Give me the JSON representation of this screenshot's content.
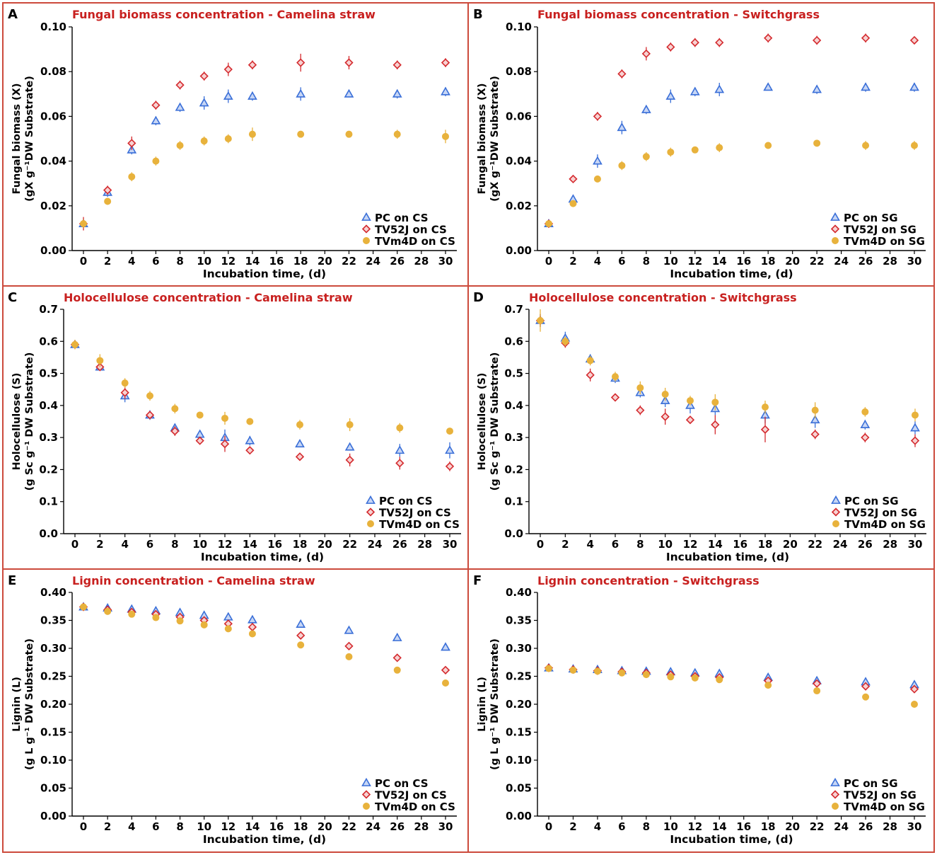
{
  "colors": {
    "pc": "#3a6fd8",
    "tv52j": "#d42a2e",
    "tvm4d": "#e8b23c",
    "title": "#c8201f",
    "frame": "#cc4a3c"
  },
  "chart_data": [
    {
      "id": "A",
      "letter": "A",
      "type": "scatter",
      "title": "Fungal biomass concentration - Camelina straw",
      "ylabel_line1": "Fungal biomass (X)",
      "ylabel_line2": "(gX g⁻¹DW Substrate)",
      "xlabel": "Incubation time, (d)",
      "xlim": [
        0,
        30
      ],
      "xticks": [
        0,
        2,
        4,
        6,
        8,
        10,
        12,
        14,
        16,
        18,
        20,
        22,
        24,
        26,
        28,
        30
      ],
      "ylim": [
        0,
        0.1
      ],
      "yticks": [
        "0.00",
        "0.02",
        "0.04",
        "0.06",
        "0.08",
        "0.10"
      ],
      "x": [
        0,
        2,
        4,
        6,
        8,
        10,
        12,
        14,
        18,
        22,
        26,
        30
      ],
      "series": [
        {
          "name": "PC on CS",
          "marker": "triangle",
          "values": [
            0.012,
            0.026,
            0.045,
            0.058,
            0.064,
            0.066,
            0.069,
            0.069,
            0.07,
            0.07,
            0.07,
            0.071
          ],
          "errors": [
            0.002,
            0.002,
            0.002,
            0.002,
            0.002,
            0.003,
            0.003,
            0.002,
            0.003,
            0.001,
            0.002,
            0.002
          ]
        },
        {
          "name": "TV52J on CS",
          "marker": "diamond",
          "values": [
            0.012,
            0.027,
            0.048,
            0.065,
            0.074,
            0.078,
            0.081,
            0.083,
            0.084,
            0.084,
            0.083,
            0.084
          ],
          "errors": [
            0.003,
            0.002,
            0.003,
            0.002,
            0.002,
            0.002,
            0.003,
            0.002,
            0.004,
            0.003,
            0.002,
            0.002
          ]
        },
        {
          "name": "TVm4D on CS",
          "marker": "circle",
          "values": [
            0.012,
            0.022,
            0.033,
            0.04,
            0.047,
            0.049,
            0.05,
            0.052,
            0.052,
            0.052,
            0.052,
            0.051
          ],
          "errors": [
            0.002,
            0.001,
            0.002,
            0.002,
            0.002,
            0.002,
            0.002,
            0.003,
            0.001,
            0.001,
            0.002,
            0.003
          ]
        }
      ]
    },
    {
      "id": "B",
      "letter": "B",
      "type": "scatter",
      "title": "Fungal biomass concentration - Switchgrass",
      "ylabel_line1": "Fungal biomass (X)",
      "ylabel_line2": "(gX g⁻¹DW Substrate)",
      "xlabel": "Incubation time, (d)",
      "xlim": [
        0,
        30
      ],
      "xticks": [
        0,
        2,
        4,
        6,
        8,
        10,
        12,
        14,
        16,
        18,
        20,
        22,
        24,
        26,
        28,
        30
      ],
      "ylim": [
        0,
        0.1
      ],
      "yticks": [
        "0.00",
        "0.02",
        "0.04",
        "0.06",
        "0.08",
        "0.10"
      ],
      "x": [
        0,
        2,
        4,
        6,
        8,
        10,
        12,
        14,
        18,
        22,
        26,
        30
      ],
      "series": [
        {
          "name": "PC on SG",
          "marker": "triangle",
          "values": [
            0.012,
            0.023,
            0.04,
            0.055,
            0.063,
            0.069,
            0.071,
            0.072,
            0.073,
            0.072,
            0.073,
            0.073
          ],
          "errors": [
            0.001,
            0.001,
            0.003,
            0.003,
            0.002,
            0.003,
            0.002,
            0.003,
            0.001,
            0.002,
            0.002,
            0.002
          ]
        },
        {
          "name": "TV52J on SG",
          "marker": "diamond",
          "values": [
            0.012,
            0.032,
            0.06,
            0.079,
            0.088,
            0.091,
            0.093,
            0.093,
            0.095,
            0.094,
            0.095,
            0.094
          ],
          "errors": [
            0.001,
            0.001,
            0.002,
            0.002,
            0.003,
            0.002,
            0.002,
            0.002,
            0.002,
            0.002,
            0.002,
            0.001
          ]
        },
        {
          "name": "TVm4D on SG",
          "marker": "circle",
          "values": [
            0.012,
            0.021,
            0.032,
            0.038,
            0.042,
            0.044,
            0.045,
            0.046,
            0.047,
            0.048,
            0.047,
            0.047
          ],
          "errors": [
            0.001,
            0.001,
            0.001,
            0.002,
            0.002,
            0.002,
            0.001,
            0.002,
            0.001,
            0.001,
            0.002,
            0.002
          ]
        }
      ]
    },
    {
      "id": "C",
      "letter": "C",
      "type": "scatter",
      "title": "Holocellulose concentration - Camelina straw",
      "ylabel_line1": "Holocellulose (S)",
      "ylabel_line2": "(g Sc g⁻¹ DW Substrate)",
      "xlabel": "Incubation time, (d)",
      "xlim": [
        0,
        30
      ],
      "xticks": [
        0,
        2,
        4,
        6,
        8,
        10,
        12,
        14,
        16,
        18,
        20,
        22,
        24,
        26,
        28,
        30
      ],
      "ylim": [
        0,
        0.7
      ],
      "yticks": [
        "0.0",
        "0.1",
        "0.2",
        "0.3",
        "0.4",
        "0.5",
        "0.6",
        "0.7"
      ],
      "x": [
        0,
        2,
        4,
        6,
        8,
        10,
        12,
        14,
        18,
        22,
        26,
        30
      ],
      "series": [
        {
          "name": "PC on CS",
          "marker": "triangle",
          "values": [
            0.59,
            0.52,
            0.43,
            0.37,
            0.33,
            0.31,
            0.3,
            0.29,
            0.28,
            0.27,
            0.26,
            0.26
          ],
          "errors": [
            0.01,
            0.01,
            0.02,
            0.015,
            0.01,
            0.01,
            0.025,
            0.015,
            0.01,
            0.01,
            0.02,
            0.025
          ]
        },
        {
          "name": "TV52J on CS",
          "marker": "diamond",
          "values": [
            0.59,
            0.52,
            0.44,
            0.37,
            0.32,
            0.29,
            0.28,
            0.26,
            0.24,
            0.23,
            0.22,
            0.21
          ],
          "errors": [
            0.01,
            0.01,
            0.02,
            0.01,
            0.015,
            0.01,
            0.025,
            0.01,
            0.01,
            0.02,
            0.02,
            0.015
          ]
        },
        {
          "name": "TVm4D on CS",
          "marker": "circle",
          "values": [
            0.59,
            0.54,
            0.47,
            0.43,
            0.39,
            0.37,
            0.36,
            0.35,
            0.34,
            0.34,
            0.33,
            0.32
          ],
          "errors": [
            0.015,
            0.02,
            0.015,
            0.015,
            0.015,
            0.01,
            0.02,
            0.01,
            0.015,
            0.02,
            0.015,
            0.01
          ]
        }
      ]
    },
    {
      "id": "D",
      "letter": "D",
      "type": "scatter",
      "title": "Holocellulose concentration - Switchgrass",
      "ylabel_line1": "Holocellulose (S)",
      "ylabel_line2": "(g Sc g⁻¹ DW Substrate)",
      "xlabel": "Incubation time, (d)",
      "xlim": [
        0,
        30
      ],
      "xticks": [
        0,
        2,
        4,
        6,
        8,
        10,
        12,
        14,
        16,
        18,
        20,
        22,
        24,
        26,
        28,
        30
      ],
      "ylim": [
        0,
        0.7
      ],
      "yticks": [
        "0.0",
        "0.1",
        "0.2",
        "0.3",
        "0.4",
        "0.5",
        "0.6",
        "0.7"
      ],
      "x": [
        0,
        2,
        4,
        6,
        8,
        10,
        12,
        14,
        18,
        22,
        26,
        30
      ],
      "series": [
        {
          "name": "PC on SG",
          "marker": "triangle",
          "values": [
            0.665,
            0.61,
            0.545,
            0.485,
            0.44,
            0.415,
            0.4,
            0.39,
            0.37,
            0.355,
            0.34,
            0.33
          ],
          "errors": [
            0.02,
            0.02,
            0.015,
            0.015,
            0.015,
            0.02,
            0.025,
            0.02,
            0.025,
            0.025,
            0.015,
            0.02
          ]
        },
        {
          "name": "TV52J on SG",
          "marker": "diamond",
          "values": [
            0.665,
            0.595,
            0.495,
            0.425,
            0.385,
            0.365,
            0.355,
            0.34,
            0.325,
            0.31,
            0.3,
            0.29
          ],
          "errors": [
            0.02,
            0.015,
            0.02,
            0.01,
            0.015,
            0.025,
            0.01,
            0.03,
            0.04,
            0.015,
            0.015,
            0.02
          ]
        },
        {
          "name": "TVm4D on SG",
          "marker": "circle",
          "values": [
            0.665,
            0.6,
            0.54,
            0.49,
            0.455,
            0.435,
            0.415,
            0.41,
            0.395,
            0.385,
            0.38,
            0.37
          ],
          "errors": [
            0.035,
            0.015,
            0.015,
            0.015,
            0.02,
            0.02,
            0.015,
            0.025,
            0.02,
            0.025,
            0.015,
            0.02
          ]
        }
      ]
    },
    {
      "id": "E",
      "letter": "E",
      "type": "scatter",
      "title": "Lignin concentration - Camelina straw",
      "ylabel_line1": "Lignin (L)",
      "ylabel_line2": "(g L g⁻¹ DW Substrate)",
      "xlabel": "Incubation time, (d)",
      "xlim": [
        0,
        30
      ],
      "xticks": [
        0,
        2,
        4,
        6,
        8,
        10,
        12,
        14,
        16,
        18,
        20,
        22,
        24,
        26,
        28,
        30
      ],
      "ylim": [
        0,
        0.4
      ],
      "yticks": [
        "0.00",
        "0.05",
        "0.10",
        "0.15",
        "0.20",
        "0.25",
        "0.30",
        "0.35",
        "0.40"
      ],
      "x": [
        0,
        2,
        4,
        6,
        8,
        10,
        12,
        14,
        18,
        22,
        26,
        30
      ],
      "series": [
        {
          "name": "PC on CS",
          "marker": "triangle",
          "values": [
            0.374,
            0.372,
            0.37,
            0.367,
            0.364,
            0.359,
            0.356,
            0.351,
            0.343,
            0.332,
            0.319,
            0.302
          ],
          "errors": [
            0.003,
            0.003,
            0.003,
            0.004,
            0.004,
            0.006,
            0.004,
            0.004,
            0.003,
            0.003,
            0.003,
            0.003
          ]
        },
        {
          "name": "TV52J on CS",
          "marker": "diamond",
          "values": [
            0.374,
            0.369,
            0.365,
            0.361,
            0.356,
            0.35,
            0.344,
            0.338,
            0.323,
            0.304,
            0.283,
            0.261
          ],
          "errors": [
            0.003,
            0.003,
            0.003,
            0.004,
            0.004,
            0.005,
            0.005,
            0.005,
            0.006,
            0.004,
            0.004,
            0.003
          ]
        },
        {
          "name": "TVm4D on CS",
          "marker": "circle",
          "values": [
            0.374,
            0.366,
            0.361,
            0.355,
            0.349,
            0.342,
            0.335,
            0.326,
            0.306,
            0.285,
            0.261,
            0.238
          ],
          "errors": [
            0.003,
            0.003,
            0.004,
            0.004,
            0.004,
            0.005,
            0.005,
            0.005,
            0.006,
            0.005,
            0.004,
            0.003
          ]
        }
      ]
    },
    {
      "id": "F",
      "letter": "F",
      "type": "scatter",
      "title": "Lignin concentration - Switchgrass",
      "ylabel_line1": "Lignin (L)",
      "ylabel_line2": "(g L g⁻¹ DW Substrate)",
      "xlabel": "Incubation time, (d)",
      "xlim": [
        0,
        30
      ],
      "xticks": [
        0,
        2,
        4,
        6,
        8,
        10,
        12,
        14,
        16,
        18,
        20,
        22,
        24,
        26,
        28,
        30
      ],
      "ylim": [
        0,
        0.4
      ],
      "yticks": [
        "0.00",
        "0.05",
        "0.10",
        "0.15",
        "0.20",
        "0.25",
        "0.30",
        "0.35",
        "0.40"
      ],
      "x": [
        0,
        2,
        4,
        6,
        8,
        10,
        12,
        14,
        18,
        22,
        26,
        30
      ],
      "series": [
        {
          "name": "PC on SG",
          "marker": "triangle",
          "values": [
            0.265,
            0.263,
            0.262,
            0.26,
            0.259,
            0.258,
            0.256,
            0.255,
            0.248,
            0.242,
            0.24,
            0.235
          ],
          "errors": [
            0.003,
            0.003,
            0.003,
            0.003,
            0.003,
            0.003,
            0.003,
            0.004,
            0.003,
            0.003,
            0.003,
            0.003
          ]
        },
        {
          "name": "TV52J on SG",
          "marker": "diamond",
          "values": [
            0.265,
            0.262,
            0.26,
            0.258,
            0.256,
            0.253,
            0.25,
            0.248,
            0.242,
            0.237,
            0.232,
            0.227
          ],
          "errors": [
            0.003,
            0.003,
            0.003,
            0.003,
            0.003,
            0.003,
            0.003,
            0.004,
            0.003,
            0.003,
            0.003,
            0.003
          ]
        },
        {
          "name": "TVm4D on SG",
          "marker": "circle",
          "values": [
            0.264,
            0.261,
            0.259,
            0.256,
            0.253,
            0.249,
            0.247,
            0.244,
            0.234,
            0.224,
            0.213,
            0.2
          ],
          "errors": [
            0.003,
            0.003,
            0.003,
            0.003,
            0.003,
            0.004,
            0.003,
            0.004,
            0.004,
            0.004,
            0.003,
            0.006
          ]
        }
      ]
    }
  ]
}
